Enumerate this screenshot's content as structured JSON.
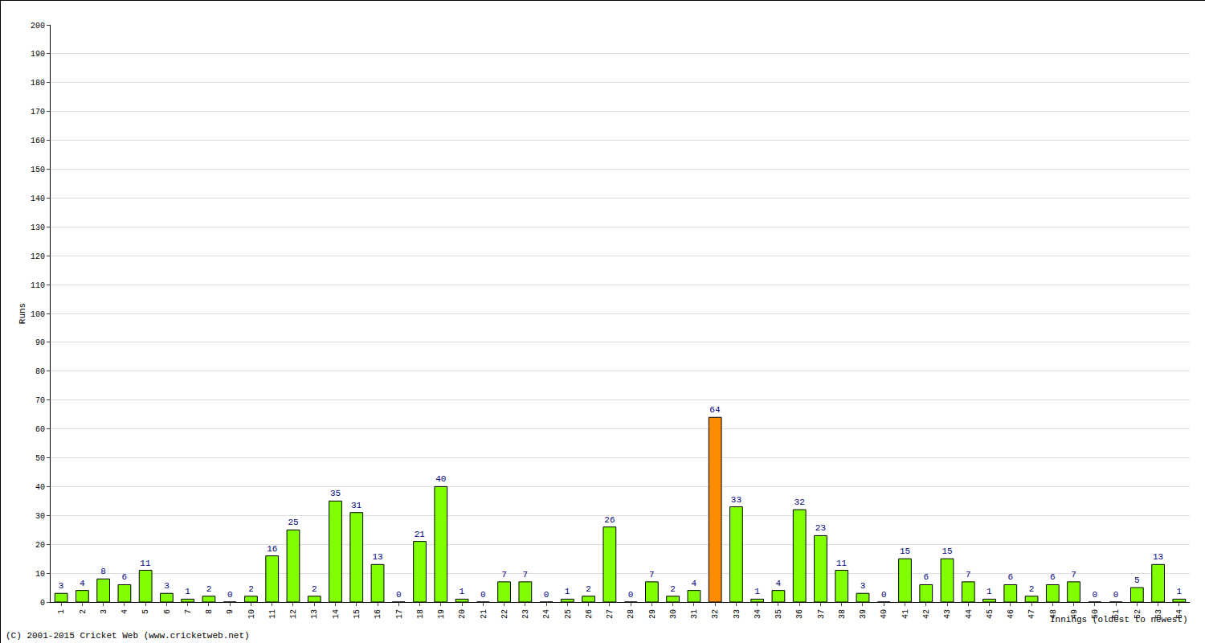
{
  "chart_data": {
    "type": "bar",
    "x_label": "Innings (oldest to newest)",
    "y_label": "Runs",
    "categories": [
      "1",
      "2",
      "3",
      "4",
      "5",
      "6",
      "7",
      "8",
      "9",
      "10",
      "11",
      "12",
      "13",
      "14",
      "15",
      "16",
      "17",
      "18",
      "19",
      "20",
      "21",
      "22",
      "23",
      "24",
      "25",
      "26",
      "27",
      "28",
      "29",
      "30",
      "31",
      "32",
      "33",
      "34",
      "35",
      "36",
      "37",
      "38",
      "39",
      "40",
      "41",
      "42",
      "43",
      "44",
      "45",
      "46",
      "47",
      "48",
      "49",
      "50",
      "51",
      "52",
      "53",
      "54"
    ],
    "values": [
      3,
      4,
      8,
      6,
      11,
      3,
      1,
      2,
      0,
      2,
      16,
      25,
      2,
      35,
      31,
      13,
      0,
      21,
      40,
      1,
      0,
      7,
      7,
      0,
      1,
      2,
      26,
      0,
      7,
      2,
      4,
      64,
      33,
      1,
      4,
      32,
      23,
      11,
      3,
      0,
      15,
      6,
      15,
      7,
      1,
      6,
      2,
      6,
      7,
      0,
      0,
      5,
      13,
      1
    ],
    "colors": [
      "#80ff00",
      "#80ff00",
      "#80ff00",
      "#80ff00",
      "#80ff00",
      "#80ff00",
      "#80ff00",
      "#80ff00",
      "#80ff00",
      "#80ff00",
      "#80ff00",
      "#80ff00",
      "#80ff00",
      "#80ff00",
      "#80ff00",
      "#80ff00",
      "#80ff00",
      "#80ff00",
      "#80ff00",
      "#80ff00",
      "#80ff00",
      "#80ff00",
      "#80ff00",
      "#80ff00",
      "#80ff00",
      "#80ff00",
      "#80ff00",
      "#80ff00",
      "#80ff00",
      "#80ff00",
      "#80ff00",
      "#ff8c00",
      "#80ff00",
      "#80ff00",
      "#80ff00",
      "#80ff00",
      "#80ff00",
      "#80ff00",
      "#80ff00",
      "#80ff00",
      "#80ff00",
      "#80ff00",
      "#80ff00",
      "#80ff00",
      "#80ff00",
      "#80ff00",
      "#80ff00",
      "#80ff00",
      "#80ff00",
      "#80ff00",
      "#80ff00",
      "#80ff00",
      "#80ff00",
      "#80ff00"
    ],
    "ylim": [
      0,
      200
    ],
    "yticks": [
      0,
      10,
      20,
      30,
      40,
      50,
      60,
      70,
      80,
      90,
      100,
      110,
      120,
      130,
      140,
      150,
      160,
      170,
      180,
      190,
      200
    ],
    "grid": true,
    "data_labels": true,
    "annotations": [
      "(C) 2001-2015 Cricket Web (www.cricketweb.net)"
    ]
  }
}
